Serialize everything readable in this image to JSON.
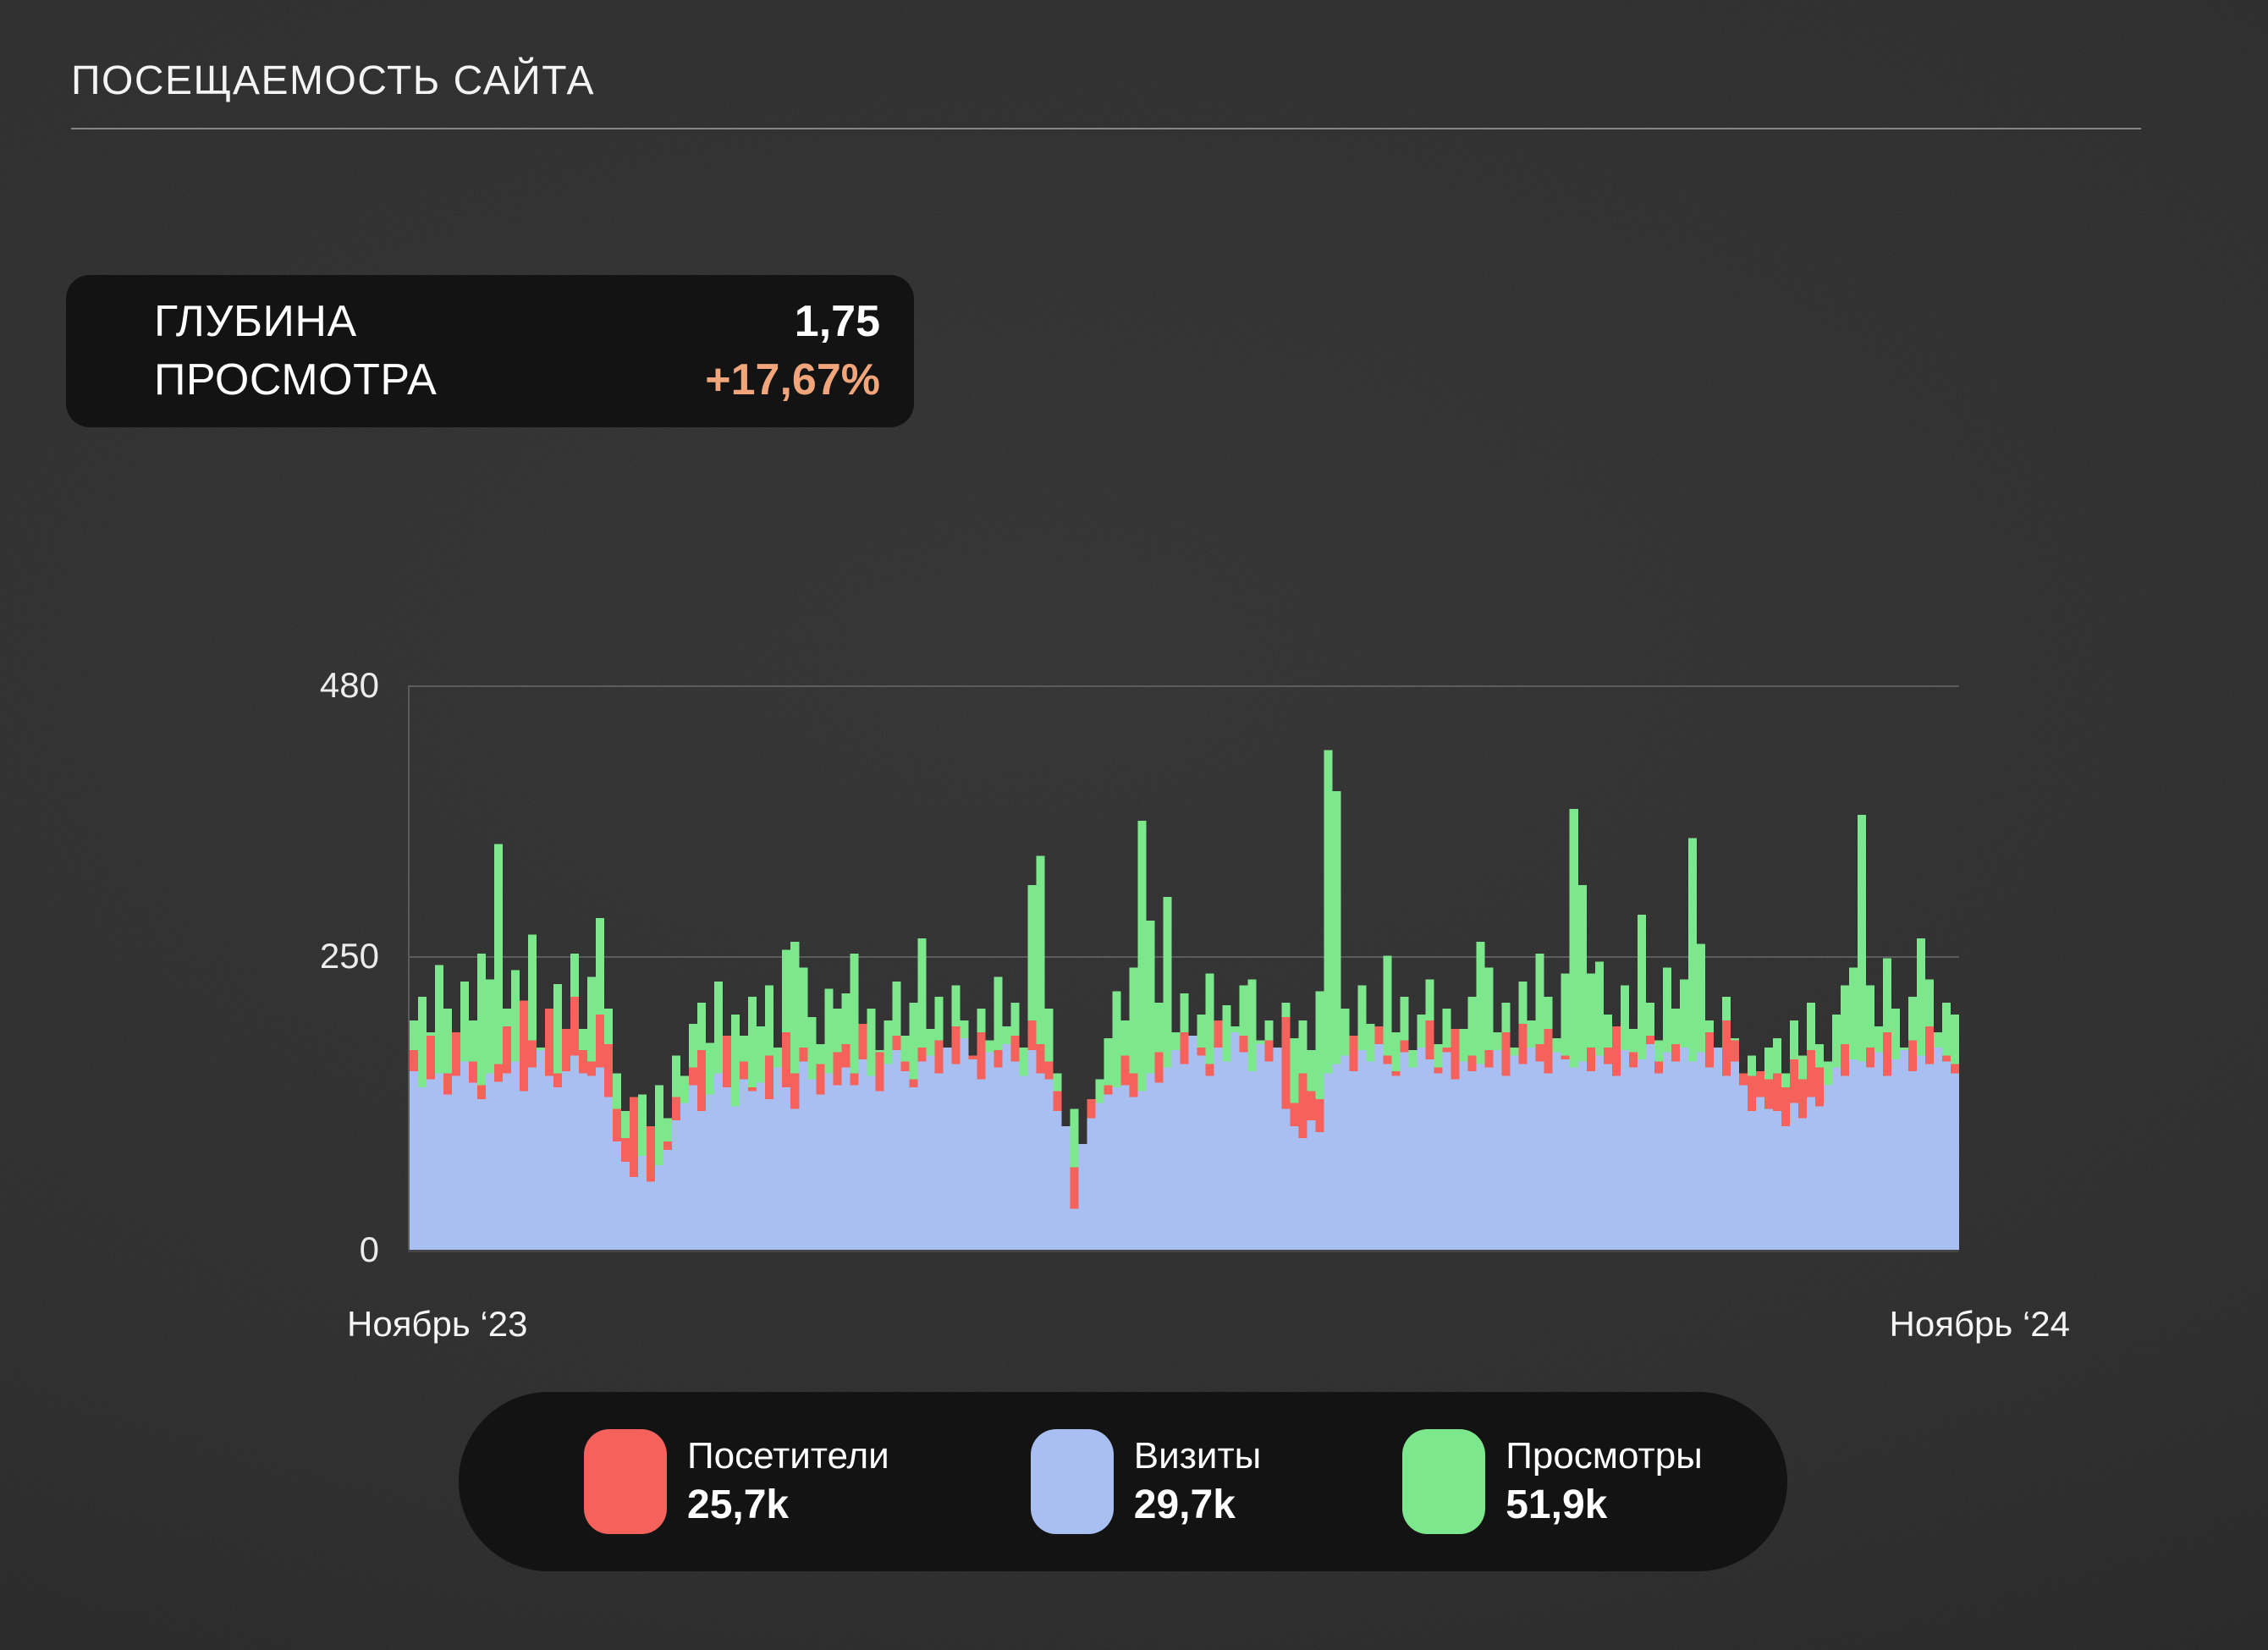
{
  "header": {
    "title": "ПОСЕЩАЕМОСТЬ САЙТА"
  },
  "stat_card": {
    "label_line1": "ГЛУБИНА",
    "label_line2": "ПРОСМОТРА",
    "value": "1,75",
    "delta": "+17,67%",
    "delta_color": "#F0A67A"
  },
  "chart": {
    "y_ticks": [
      "480",
      "250",
      "0"
    ],
    "x_start_label": "Ноябрь ‘23",
    "x_end_label": "Ноябрь ‘24"
  },
  "legend": {
    "items": [
      {
        "name": "Посетители",
        "value": "25,7k",
        "color": "#F5625C"
      },
      {
        "name": "Визиты",
        "value": "29,7k",
        "color": "#A9BFF2"
      },
      {
        "name": "Просмотры",
        "value": "51,9k",
        "color": "#7DE78D"
      }
    ]
  },
  "chart_data": {
    "type": "bar",
    "title": "ПОСЕЩАЕМОСТЬ САЙТА",
    "xlabel": "",
    "ylabel": "",
    "x_range": [
      "Ноябрь ‘23",
      "Ноябрь ‘24"
    ],
    "ylim": [
      0,
      480
    ],
    "y_ticks": [
      0,
      250,
      480
    ],
    "grid": "horizontal",
    "legend_position": "bottom",
    "bar_style": "overlapping-daily-bars, no gaps",
    "draw_order_back_to_front": [
      2,
      0,
      1
    ],
    "series": [
      {
        "name": "Посетители",
        "total": "25,7k",
        "color": "#F5625C",
        "values": [
          170,
          128,
          182,
          120,
          150,
          185,
          135,
          160,
          140,
          122,
          158,
          190,
          145,
          212,
          178,
          160,
          205,
          150,
          188,
          215,
          170,
          160,
          200,
          175,
          120,
          95,
          130,
          70,
          105,
          45,
          92,
          130,
          98,
          155,
          170,
          120,
          145,
          182,
          110,
          160,
          138,
          120,
          165,
          140,
          185,
          150,
          172,
          130,
          158,
          145,
          168,
          175,
          150,
          192,
          135,
          168,
          148,
          182,
          160,
          145,
          172,
          140,
          178,
          155,
          190,
          148,
          165,
          185,
          152,
          170,
          160,
          182,
          145,
          195,
          175,
          160,
          135,
          88,
          70,
          55,
          128,
          112,
          140,
          95,
          165,
          150,
          110,
          130,
          168,
          145,
          150,
          185,
          140,
          172,
          158,
          195,
          148,
          168,
          182,
          145,
          160,
          178,
          145,
          198,
          125,
          150,
          135,
          128,
          130,
          142,
          148,
          182,
          160,
          145,
          190,
          165,
          152,
          178,
          142,
          168,
          195,
          155,
          172,
          188,
          150,
          165,
          142,
          170,
          145,
          185,
          160,
          192,
          155,
          175,
          188,
          148,
          165,
          140,
          150,
          172,
          155,
          172,
          190,
          152,
          168,
          145,
          182,
          160,
          148,
          175,
          158,
          145,
          150,
          185,
          160,
          195,
          178,
          150,
          148,
          152,
          145,
          150,
          138,
          162,
          145,
          170,
          155,
          130,
          150,
          175,
          145,
          140,
          172,
          150,
          185,
          160,
          145,
          178,
          155,
          190,
          148,
          165,
          158
        ]
      },
      {
        "name": "Визиты",
        "total": "29,7k",
        "color": "#A9BFF2",
        "values": [
          152,
          138,
          145,
          150,
          132,
          148,
          160,
          142,
          128,
          150,
          143,
          150,
          160,
          135,
          155,
          170,
          148,
          138,
          152,
          165,
          150,
          148,
          155,
          130,
          92,
          75,
          62,
          80,
          58,
          72,
          85,
          110,
          125,
          140,
          118,
          132,
          150,
          138,
          122,
          145,
          135,
          142,
          128,
          155,
          138,
          120,
          160,
          145,
          132,
          150,
          140,
          155,
          140,
          162,
          148,
          135,
          158,
          170,
          152,
          138,
          160,
          165,
          150,
          172,
          158,
          180,
          162,
          145,
          168,
          155,
          175,
          160,
          148,
          170,
          150,
          145,
          118,
          105,
          35,
          90,
          112,
          125,
          132,
          138,
          140,
          130,
          135,
          150,
          142,
          155,
          170,
          158,
          182,
          165,
          148,
          172,
          160,
          185,
          168,
          152,
          175,
          160,
          172,
          120,
          105,
          95,
          110,
          100,
          150,
          158,
          165,
          152,
          170,
          160,
          175,
          158,
          148,
          168,
          155,
          172,
          162,
          150,
          168,
          145,
          160,
          152,
          158,
          155,
          170,
          148,
          165,
          158,
          172,
          160,
          150,
          168,
          162,
          155,
          160,
          152,
          165,
          158,
          148,
          170,
          155,
          162,
          175,
          150,
          168,
          160,
          172,
          160,
          168,
          155,
          172,
          148,
          160,
          140,
          118,
          130,
          120,
          118,
          105,
          125,
          112,
          130,
          122,
          140,
          155,
          148,
          162,
          160,
          155,
          168,
          148,
          162,
          170,
          152,
          165,
          158,
          172,
          160,
          150
        ]
      },
      {
        "name": "Просмотры",
        "total": "51,9k",
        "color": "#7DE78D",
        "values": [
          195,
          215,
          185,
          242,
          205,
          172,
          228,
          195,
          252,
          230,
          345,
          205,
          238,
          180,
          268,
          172,
          195,
          226,
          160,
          252,
          188,
          232,
          282,
          205,
          150,
          118,
          96,
          132,
          88,
          140,
          112,
          165,
          148,
          192,
          210,
          176,
          228,
          158,
          200,
          182,
          215,
          190,
          225,
          172,
          255,
          262,
          240,
          198,
          175,
          222,
          205,
          218,
          252,
          185,
          205,
          170,
          195,
          228,
          182,
          210,
          265,
          188,
          215,
          170,
          225,
          195,
          160,
          205,
          178,
          232,
          190,
          210,
          172,
          310,
          335,
          205,
          150,
          95,
          120,
          70,
          105,
          145,
          180,
          220,
          195,
          240,
          365,
          280,
          210,
          300,
          185,
          218,
          172,
          200,
          235,
          162,
          208,
          190,
          225,
          230,
          178,
          195,
          165,
          210,
          180,
          195,
          170,
          220,
          425,
          390,
          205,
          178,
          225,
          192,
          160,
          250,
          185,
          215,
          170,
          200,
          230,
          175,
          205,
          158,
          188,
          215,
          262,
          240,
          185,
          210,
          172,
          228,
          195,
          252,
          215,
          180,
          235,
          375,
          310,
          235,
          245,
          200,
          170,
          225,
          188,
          285,
          210,
          178,
          240,
          205,
          230,
          350,
          260,
          195,
          165,
          215,
          180,
          150,
          165,
          150,
          172,
          180,
          150,
          195,
          165,
          210,
          175,
          160,
          200,
          225,
          240,
          370,
          225,
          190,
          248,
          205,
          172,
          215,
          265,
          230,
          185,
          210,
          200
        ]
      }
    ]
  }
}
